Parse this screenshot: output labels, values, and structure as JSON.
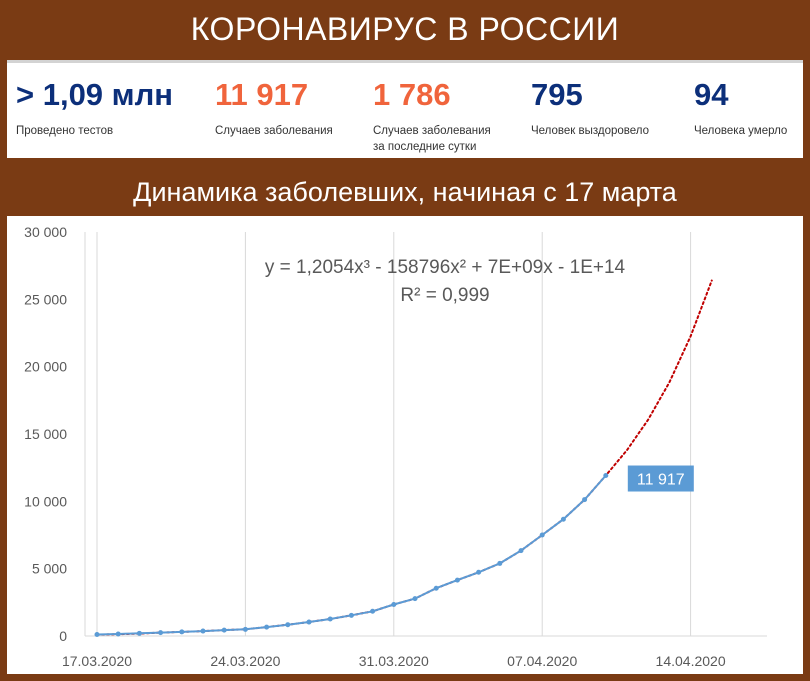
{
  "header": {
    "title": "КОРОНАВИРУС В РОССИИ"
  },
  "stats": [
    {
      "value": "> 1,09 млн",
      "label": "Проведено тестов",
      "color": "#0c2f7a"
    },
    {
      "value": "11 917",
      "label": "Случаев заболевания",
      "color": "#f0643c"
    },
    {
      "value": "1 786",
      "label": "Случаев заболевания\nза последние сутки",
      "color": "#f0643c"
    },
    {
      "value": "795",
      "label": "Человек выздоровело",
      "color": "#0c2f7a"
    },
    {
      "value": "94",
      "label": "Человека умерло",
      "color": "#0c2f7a"
    }
  ],
  "subtitle": "Динамика заболевших, начиная с 17 марта",
  "chart_data": {
    "type": "line",
    "x": [
      "17.03.2020",
      "18.03.2020",
      "19.03.2020",
      "20.03.2020",
      "21.03.2020",
      "22.03.2020",
      "23.03.2020",
      "24.03.2020",
      "25.03.2020",
      "26.03.2020",
      "27.03.2020",
      "28.03.2020",
      "29.03.2020",
      "30.03.2020",
      "31.03.2020",
      "01.04.2020",
      "02.04.2020",
      "03.04.2020",
      "04.04.2020",
      "05.04.2020",
      "06.04.2020",
      "07.04.2020",
      "08.04.2020",
      "09.04.2020",
      "10.04.2020"
    ],
    "series": [
      {
        "values": [
          114,
          147,
          199,
          253,
          306,
          367,
          438,
          495,
          658,
          840,
          1036,
          1264,
          1534,
          1836,
          2337,
          2777,
          3548,
          4149,
          4731,
          5389,
          6343,
          7497,
          8672,
          10131,
          11917
        ],
        "color": "#5b9bd5"
      }
    ],
    "trendline": {
      "type": "polynomial-3",
      "color": "#c00000",
      "style": "dotted",
      "end_x": "15.04.2020",
      "end_value": 26400,
      "equation": "y = 1,2054x³ - 158796x² + 7E+09x - 1E+14",
      "r_squared": "R² = 0,999"
    },
    "data_label": "11 917",
    "data_label_color": "#5b9bd5",
    "x_ticks": [
      "17.03.2020",
      "24.03.2020",
      "31.03.2020",
      "07.04.2020",
      "14.04.2020"
    ],
    "y_ticks": [
      "0",
      "5 000",
      "10 000",
      "15 000",
      "20 000",
      "25 000",
      "30 000"
    ],
    "ylim": [
      0,
      30000
    ],
    "grid": "vertical",
    "legend": "none"
  }
}
